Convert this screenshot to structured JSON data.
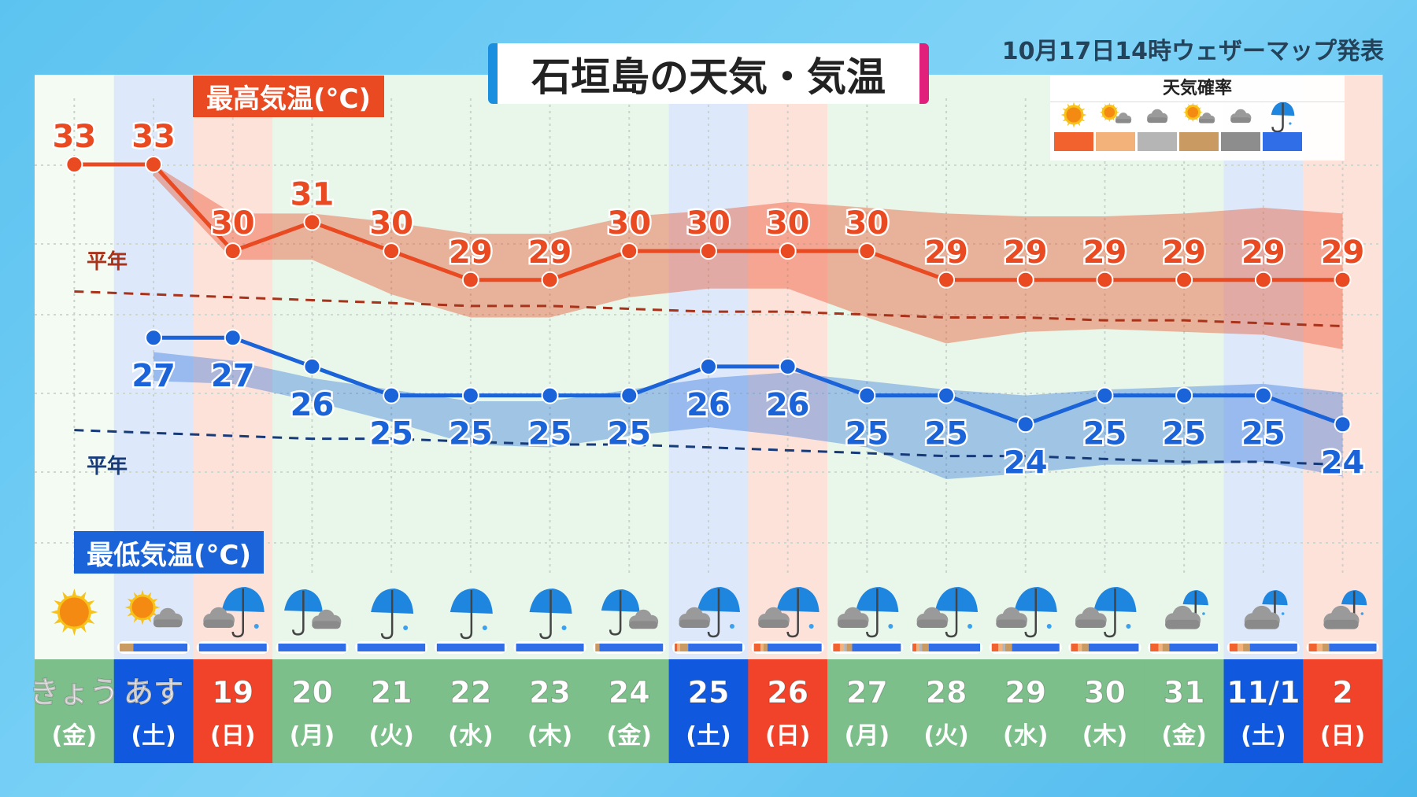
{
  "title": "石垣島の天気・気温",
  "published": "10月17日14時ウェザーマップ発表",
  "legend": {
    "title": "天気確率",
    "items": [
      {
        "icon": "sunny",
        "color": "#f2622e"
      },
      {
        "icon": "sunny-then-cloudy",
        "color": "#f2b27a"
      },
      {
        "icon": "cloudy",
        "color": "#b5b5b5"
      },
      {
        "icon": "sunny-with-clouds",
        "color": "#c99a62"
      },
      {
        "icon": "dark-cloudy",
        "color": "#8d8d8d"
      },
      {
        "icon": "rain",
        "color": "#2f6ee6"
      }
    ]
  },
  "labels": {
    "high": "最高気温(°C)",
    "low": "最低気温(°C)",
    "normal": "平年"
  },
  "chart_data": {
    "type": "line",
    "categories": [
      "きょう",
      "あす",
      "19",
      "20",
      "21",
      "22",
      "23",
      "24",
      "25",
      "26",
      "27",
      "28",
      "29",
      "30",
      "31",
      "11/1",
      "2"
    ],
    "weekdays": [
      "(金)",
      "(土)",
      "(日)",
      "(月)",
      "(火)",
      "(水)",
      "(木)",
      "(金)",
      "(土)",
      "(日)",
      "(月)",
      "(火)",
      "(水)",
      "(木)",
      "(金)",
      "(土)",
      "(日)"
    ],
    "day_type": [
      "today",
      "sat",
      "sun",
      "wd",
      "wd",
      "wd",
      "wd",
      "wd",
      "sat",
      "sun",
      "wd",
      "wd",
      "wd",
      "wd",
      "wd",
      "sat",
      "sun"
    ],
    "series": [
      {
        "name": "最高気温(°C)",
        "color": "#e94a22",
        "values": [
          33,
          33,
          30,
          31,
          30,
          29,
          29,
          30,
          30,
          30,
          30,
          29,
          29,
          29,
          29,
          29,
          29
        ],
        "range_upper": [
          null,
          33,
          31.3,
          31.3,
          31,
          30.6,
          30.6,
          31.2,
          31.4,
          31.7,
          31.5,
          31.3,
          31.2,
          31.2,
          31.3,
          31.5,
          31.3
        ],
        "range_lower": [
          null,
          32.6,
          29.7,
          29.7,
          28.5,
          27.7,
          27.7,
          28.4,
          28.7,
          28.7,
          27.7,
          26.8,
          27.2,
          27.3,
          27.2,
          27.1,
          26.6
        ],
        "normal": [
          28.6,
          28.5,
          28.4,
          28.3,
          28.2,
          28.1,
          28.1,
          28.0,
          27.9,
          27.9,
          27.8,
          27.7,
          27.7,
          27.6,
          27.6,
          27.5,
          27.4
        ]
      },
      {
        "name": "最低気温(°C)",
        "color": "#1a63d8",
        "values": [
          null,
          27,
          27,
          26,
          25,
          25,
          25,
          25,
          26,
          26,
          25,
          25,
          24,
          25,
          25,
          25,
          24
        ],
        "range_upper": [
          null,
          26.5,
          26.2,
          25.6,
          25.2,
          24.8,
          24.8,
          25.2,
          25.6,
          25.8,
          25.5,
          25.2,
          25,
          25.2,
          25.3,
          25.4,
          25.1
        ],
        "range_lower": [
          null,
          25.5,
          25.4,
          24.8,
          24.1,
          23.3,
          23.2,
          23.6,
          23.9,
          23.6,
          23.2,
          22.1,
          22.3,
          22.6,
          22.6,
          22.7,
          22.2
        ],
        "normal": [
          23.8,
          23.7,
          23.6,
          23.5,
          23.5,
          23.4,
          23.3,
          23.3,
          23.2,
          23.1,
          23.0,
          22.9,
          22.9,
          22.8,
          22.7,
          22.7,
          22.6
        ]
      }
    ],
    "weather": [
      "sunny",
      "sunny-then-cloudy",
      "cloudy-with-rain",
      "rain-then-cloudy",
      "rain",
      "rain",
      "rain",
      "rain-then-cloudy",
      "cloudy-with-rain",
      "cloudy-with-rain",
      "cloudy-with-rain",
      "cloudy-with-rain",
      "cloudy-with-rain",
      "cloudy-with-rain",
      "cloudy-chance-rain",
      "cloudy-chance-rain",
      "cloudy-chance-rain"
    ],
    "weather_probability": [
      null,
      [
        0,
        0,
        0,
        0.2,
        0,
        0.8
      ],
      [
        0,
        0,
        0,
        0,
        0,
        1
      ],
      [
        0,
        0,
        0,
        0,
        0,
        1
      ],
      [
        0,
        0,
        0,
        0,
        0,
        1
      ],
      [
        0,
        0,
        0,
        0,
        0,
        1
      ],
      [
        0,
        0,
        0,
        0,
        0,
        1
      ],
      [
        0,
        0,
        0,
        0.06,
        0,
        0.94
      ],
      [
        0.04,
        0.04,
        0,
        0.12,
        0,
        0.8
      ],
      [
        0.1,
        0.04,
        0,
        0.06,
        0,
        0.8
      ],
      [
        0.1,
        0.06,
        0.04,
        0.08,
        0,
        0.72
      ],
      [
        0.06,
        0.04,
        0.04,
        0.1,
        0,
        0.76
      ],
      [
        0.1,
        0.06,
        0.04,
        0.1,
        0,
        0.7
      ],
      [
        0.1,
        0.06,
        0,
        0.1,
        0,
        0.74
      ],
      [
        0.12,
        0.06,
        0,
        0.1,
        0,
        0.72
      ],
      [
        0.12,
        0.08,
        0,
        0.1,
        0,
        0.7
      ],
      [
        0.12,
        0.08,
        0,
        0.1,
        0,
        0.7
      ]
    ],
    "ylim": [
      20,
      35
    ],
    "grid": true
  }
}
